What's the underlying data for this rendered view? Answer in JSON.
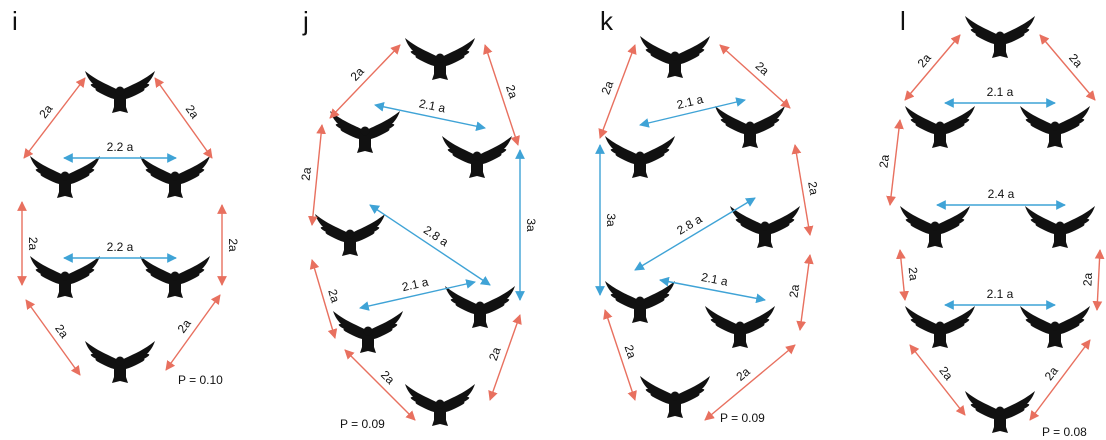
{
  "panels": [
    {
      "letter": "i",
      "arrows": [
        "2a",
        "2a",
        "2.2 a",
        "2a",
        "2a",
        "2.2 a",
        "2a",
        "2a"
      ],
      "p_value": "P = 0.10"
    },
    {
      "letter": "j",
      "arrows": [
        "2a",
        "2a",
        "2.1 a",
        "2a",
        "3a",
        "2.8 a",
        "2.1 a",
        "2a",
        "2a",
        "2a"
      ],
      "p_value": "P = 0.09"
    },
    {
      "letter": "k",
      "arrows": [
        "2a",
        "2a",
        "2.1 a",
        "3a",
        "2a",
        "2.8 a",
        "2.1 a",
        "2a",
        "2a",
        "2a"
      ],
      "p_value": "P = 0.09"
    },
    {
      "letter": "l",
      "arrows": [
        "2a",
        "2a",
        "2.1 a",
        "2a",
        "2.4 a",
        "2a",
        "2a",
        "2.1 a",
        "2a",
        "2a"
      ],
      "p_value": "P = 0.08"
    }
  ]
}
